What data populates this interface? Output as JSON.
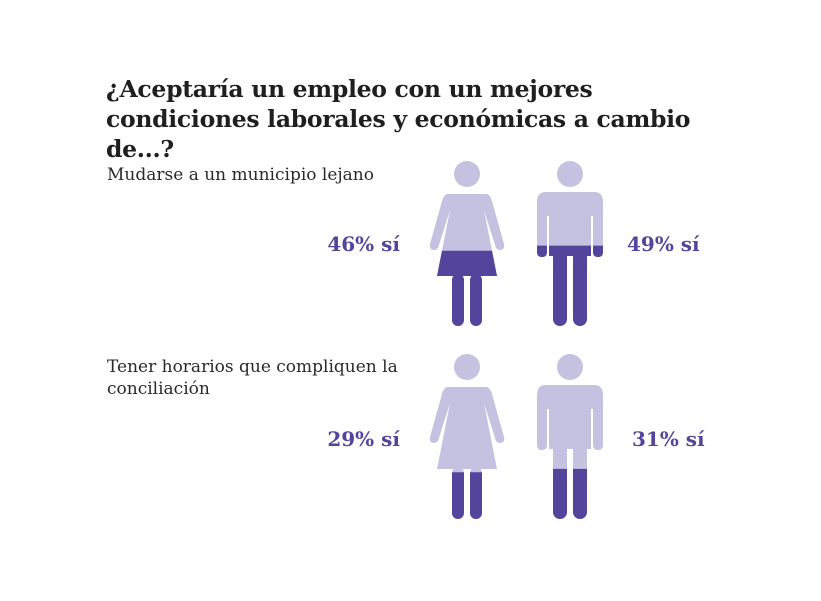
{
  "title": "¿Aceptaría un empleo con un mejores condiciones laborales y económicas a cambio de...?",
  "colors": {
    "light": "#c5c1e1",
    "dark": "#54449b"
  },
  "chart_data": {
    "type": "pictogram",
    "unit": "% sí",
    "groups": [
      {
        "question": "Mudarse a un municipio lejano",
        "woman": {
          "value": 46,
          "label": "46% sí"
        },
        "man": {
          "value": 49,
          "label": "49% sí"
        }
      },
      {
        "question": "Tener horarios que compliquen la conciliación",
        "woman": {
          "value": 29,
          "label": "29% sí"
        },
        "man": {
          "value": 31,
          "label": "31% sí"
        }
      }
    ]
  }
}
